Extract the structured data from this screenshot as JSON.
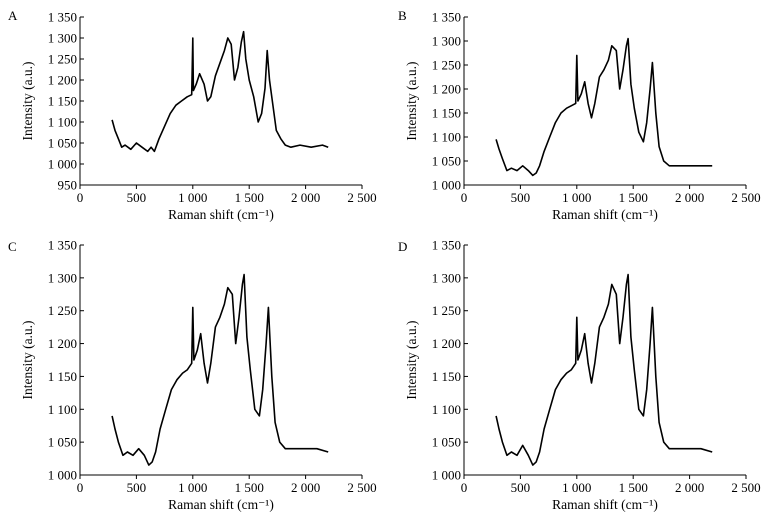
{
  "chart_data": [
    {
      "type": "line",
      "label": "A",
      "title": "",
      "xlabel": "Raman shift (cm⁻¹)",
      "ylabel": "Intensity (a.u.)",
      "xlim": [
        0,
        2500
      ],
      "ylim": [
        950,
        1350
      ],
      "xticks": [
        0,
        500,
        1000,
        1500,
        2000,
        2500
      ],
      "xtick_labels": [
        "0",
        "500",
        "1 000",
        "1 500",
        "2 000",
        "2 500"
      ],
      "yticks": [
        950,
        1000,
        1050,
        1100,
        1150,
        1200,
        1250,
        1300,
        1350
      ],
      "ytick_labels": [
        "950",
        "1 000",
        "1 050",
        "1 100",
        "1 150",
        "1 200",
        "1 250",
        "1 300",
        "1 350"
      ],
      "series": [
        {
          "name": "A",
          "x": [
            285,
            310,
            340,
            370,
            400,
            450,
            500,
            550,
            600,
            630,
            660,
            700,
            750,
            800,
            850,
            900,
            950,
            990,
            1000,
            1005,
            1030,
            1060,
            1100,
            1130,
            1160,
            1200,
            1240,
            1280,
            1310,
            1340,
            1370,
            1400,
            1430,
            1450,
            1470,
            1500,
            1540,
            1580,
            1610,
            1640,
            1660,
            1680,
            1710,
            1740,
            1780,
            1820,
            1870,
            1950,
            2050,
            2150,
            2200
          ],
          "y": [
            1105,
            1080,
            1060,
            1040,
            1045,
            1035,
            1050,
            1040,
            1030,
            1040,
            1030,
            1060,
            1090,
            1120,
            1140,
            1150,
            1160,
            1165,
            1300,
            1175,
            1190,
            1215,
            1190,
            1150,
            1160,
            1210,
            1240,
            1270,
            1300,
            1285,
            1200,
            1230,
            1290,
            1315,
            1250,
            1200,
            1160,
            1100,
            1120,
            1180,
            1270,
            1200,
            1140,
            1080,
            1060,
            1045,
            1040,
            1045,
            1040,
            1045,
            1040
          ]
        }
      ]
    },
    {
      "type": "line",
      "label": "B",
      "title": "",
      "xlabel": "Raman shift (cm⁻¹)",
      "ylabel": "Intensity (a.u.)",
      "xlim": [
        0,
        2500
      ],
      "ylim": [
        1000,
        1350
      ],
      "xticks": [
        0,
        500,
        1000,
        1500,
        2000,
        2500
      ],
      "xtick_labels": [
        "0",
        "500",
        "1 000",
        "1 500",
        "2 000",
        "2 500"
      ],
      "yticks": [
        1000,
        1050,
        1100,
        1150,
        1200,
        1250,
        1300,
        1350
      ],
      "ytick_labels": [
        "1 000",
        "1 050",
        "1 100",
        "1 150",
        "1 200",
        "1 250",
        "1 300",
        "1 350"
      ],
      "series": [
        {
          "name": "B",
          "x": [
            285,
            310,
            340,
            380,
            420,
            470,
            520,
            570,
            610,
            640,
            670,
            710,
            760,
            810,
            860,
            910,
            950,
            990,
            1000,
            1010,
            1040,
            1070,
            1100,
            1130,
            1160,
            1200,
            1240,
            1280,
            1310,
            1350,
            1380,
            1410,
            1440,
            1455,
            1480,
            1510,
            1550,
            1590,
            1620,
            1650,
            1670,
            1700,
            1730,
            1770,
            1820,
            1900,
            2000,
            2100,
            2200
          ],
          "y": [
            1095,
            1075,
            1055,
            1030,
            1035,
            1030,
            1040,
            1030,
            1020,
            1025,
            1040,
            1070,
            1100,
            1130,
            1150,
            1160,
            1165,
            1170,
            1270,
            1175,
            1190,
            1215,
            1170,
            1140,
            1170,
            1225,
            1240,
            1260,
            1290,
            1280,
            1200,
            1240,
            1290,
            1305,
            1210,
            1160,
            1110,
            1090,
            1130,
            1200,
            1255,
            1150,
            1080,
            1050,
            1040,
            1040,
            1040,
            1040,
            1040
          ]
        }
      ]
    },
    {
      "type": "line",
      "label": "C",
      "title": "",
      "xlabel": "Raman shift (cm⁻¹)",
      "ylabel": "Intensity (a.u.)",
      "xlim": [
        0,
        2500
      ],
      "ylim": [
        1000,
        1350
      ],
      "xticks": [
        0,
        500,
        1000,
        1500,
        2000,
        2500
      ],
      "xtick_labels": [
        "0",
        "500",
        "1 000",
        "1 500",
        "2 000",
        "2 500"
      ],
      "yticks": [
        1000,
        1050,
        1100,
        1150,
        1200,
        1250,
        1300,
        1350
      ],
      "ytick_labels": [
        "1 000",
        "1 050",
        "1 100",
        "1 150",
        "1 200",
        "1 250",
        "1 300",
        "1 350"
      ],
      "series": [
        {
          "name": "C",
          "x": [
            285,
            310,
            340,
            380,
            420,
            470,
            520,
            570,
            610,
            640,
            670,
            710,
            760,
            810,
            860,
            910,
            950,
            990,
            1000,
            1010,
            1040,
            1070,
            1100,
            1130,
            1160,
            1200,
            1240,
            1280,
            1310,
            1350,
            1380,
            1410,
            1440,
            1455,
            1480,
            1510,
            1550,
            1590,
            1620,
            1650,
            1670,
            1700,
            1730,
            1770,
            1820,
            1900,
            2000,
            2100,
            2200
          ],
          "y": [
            1090,
            1070,
            1050,
            1030,
            1035,
            1030,
            1040,
            1030,
            1015,
            1020,
            1035,
            1070,
            1100,
            1130,
            1145,
            1155,
            1160,
            1170,
            1255,
            1175,
            1190,
            1215,
            1170,
            1140,
            1170,
            1225,
            1240,
            1260,
            1285,
            1275,
            1200,
            1240,
            1290,
            1305,
            1210,
            1160,
            1100,
            1090,
            1130,
            1200,
            1255,
            1150,
            1080,
            1050,
            1040,
            1040,
            1040,
            1040,
            1035
          ]
        }
      ]
    },
    {
      "type": "line",
      "label": "D",
      "title": "",
      "xlabel": "Raman shift (cm⁻¹)",
      "ylabel": "Intensity (a.u.)",
      "xlim": [
        0,
        2500
      ],
      "ylim": [
        1000,
        1350
      ],
      "xticks": [
        0,
        500,
        1000,
        1500,
        2000,
        2500
      ],
      "xtick_labels": [
        "0",
        "500",
        "1 000",
        "1 500",
        "2 000",
        "2 500"
      ],
      "yticks": [
        1000,
        1050,
        1100,
        1150,
        1200,
        1250,
        1300,
        1350
      ],
      "ytick_labels": [
        "1 000",
        "1 050",
        "1 100",
        "1 150",
        "1 200",
        "1 250",
        "1 300",
        "1 350"
      ],
      "series": [
        {
          "name": "D",
          "x": [
            285,
            310,
            340,
            380,
            420,
            470,
            520,
            570,
            610,
            640,
            670,
            710,
            760,
            810,
            860,
            910,
            950,
            990,
            1000,
            1010,
            1040,
            1070,
            1100,
            1130,
            1160,
            1200,
            1240,
            1280,
            1310,
            1350,
            1380,
            1410,
            1440,
            1455,
            1480,
            1510,
            1550,
            1590,
            1620,
            1650,
            1670,
            1700,
            1730,
            1770,
            1820,
            1900,
            2000,
            2100,
            2200
          ],
          "y": [
            1090,
            1070,
            1050,
            1030,
            1035,
            1030,
            1045,
            1030,
            1015,
            1020,
            1035,
            1070,
            1100,
            1130,
            1145,
            1155,
            1160,
            1170,
            1240,
            1175,
            1190,
            1215,
            1170,
            1140,
            1170,
            1225,
            1240,
            1260,
            1290,
            1275,
            1200,
            1240,
            1290,
            1305,
            1210,
            1160,
            1100,
            1090,
            1130,
            1200,
            1255,
            1150,
            1080,
            1050,
            1040,
            1040,
            1040,
            1040,
            1035
          ]
        }
      ]
    }
  ]
}
